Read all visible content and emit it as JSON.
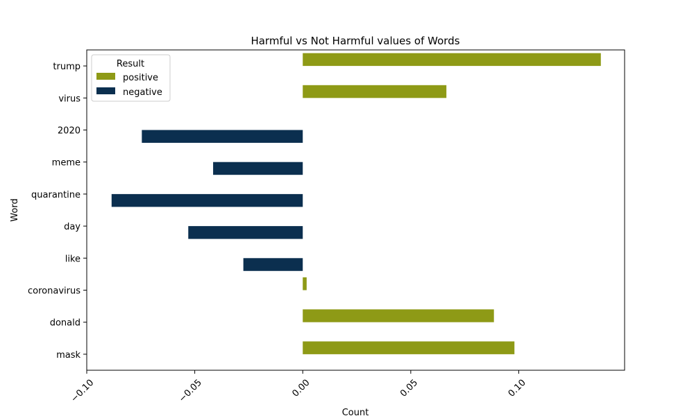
{
  "chart_data": {
    "type": "bar",
    "orientation": "horizontal",
    "title": "Harmful vs Not Harmful values of Words",
    "xlabel": "Count",
    "ylabel": "Word",
    "xlim": [
      -0.1,
      0.149
    ],
    "xticks": [
      -0.1,
      -0.05,
      0.0,
      0.05,
      0.1
    ],
    "xtick_labels": [
      "−0.10",
      "−0.05",
      "0.00",
      "0.05",
      "0.10"
    ],
    "grid": false,
    "legend": {
      "title": "Result",
      "placement": "top-left",
      "entries": [
        "positive",
        "negative"
      ]
    },
    "categories": [
      "trump",
      "virus",
      "2020",
      "meme",
      "quarantine",
      "day",
      "like",
      "coronavirus",
      "donald",
      "mask"
    ],
    "series": [
      {
        "name": "positive",
        "color": "#8e9a16",
        "values": [
          0.138,
          0.0665,
          null,
          null,
          null,
          null,
          null,
          0.0018,
          0.0885,
          0.098
        ]
      },
      {
        "name": "negative",
        "color": "#0b2f4f",
        "values": [
          null,
          null,
          -0.0745,
          -0.0415,
          -0.0885,
          -0.053,
          -0.0275,
          null,
          null,
          null
        ]
      }
    ]
  }
}
